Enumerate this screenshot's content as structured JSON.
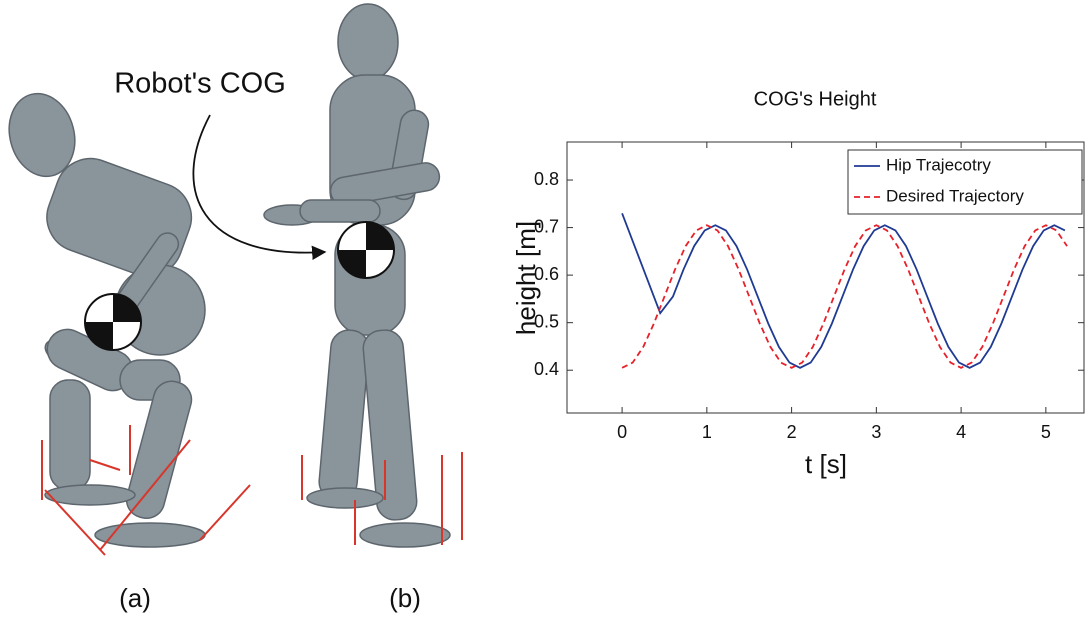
{
  "figure": {
    "callout": "Robot's COG",
    "panel_labels": [
      "(a)",
      "(b)"
    ]
  },
  "chart_data": {
    "type": "line",
    "title": "COG's Height",
    "x_label": "t [s]",
    "y_label": "height [m]",
    "xlim": [
      -0.65,
      5.45
    ],
    "ylim": [
      0.31,
      0.88
    ],
    "xticks": [
      0,
      1,
      2,
      3,
      4,
      5
    ],
    "yticks": [
      0.4,
      0.5,
      0.6,
      0.7,
      0.8
    ],
    "grid": false,
    "legend": "upper right",
    "series": [
      {
        "name": "Hip Trajecotry",
        "color": "#1f3a93",
        "style": "solid",
        "x": [
          0,
          0.45,
          0.6,
          0.725,
          0.85,
          0.975,
          1.1,
          1.225,
          1.35,
          1.475,
          1.6,
          1.725,
          1.85,
          1.975,
          2.1,
          2.225,
          2.35,
          2.475,
          2.6,
          2.725,
          2.85,
          2.975,
          3.1,
          3.225,
          3.35,
          3.475,
          3.6,
          3.725,
          3.85,
          3.975,
          4.1,
          4.225,
          4.35,
          4.475,
          4.6,
          4.725,
          4.85,
          4.975,
          5.1,
          5.225
        ],
        "values": [
          0.73,
          0.52,
          0.555,
          0.612,
          0.661,
          0.694,
          0.705,
          0.694,
          0.661,
          0.612,
          0.555,
          0.498,
          0.449,
          0.416,
          0.405,
          0.416,
          0.449,
          0.498,
          0.555,
          0.612,
          0.661,
          0.694,
          0.705,
          0.694,
          0.661,
          0.612,
          0.555,
          0.498,
          0.449,
          0.416,
          0.405,
          0.416,
          0.449,
          0.498,
          0.555,
          0.612,
          0.661,
          0.694,
          0.705,
          0.694
        ]
      },
      {
        "name": "Desired Trajectory",
        "color": "#e8202a",
        "style": "dashed",
        "x": [
          0,
          0.125,
          0.25,
          0.375,
          0.5,
          0.625,
          0.75,
          0.875,
          1,
          1.125,
          1.25,
          1.375,
          1.5,
          1.625,
          1.75,
          1.875,
          2,
          2.125,
          2.25,
          2.375,
          2.5,
          2.625,
          2.75,
          2.875,
          3,
          3.125,
          3.25,
          3.375,
          3.5,
          3.625,
          3.75,
          3.875,
          4,
          4.125,
          4.25,
          4.375,
          4.5,
          4.625,
          4.75,
          4.875,
          5,
          5.125,
          5.25
        ],
        "values": [
          0.405,
          0.416,
          0.449,
          0.498,
          0.555,
          0.612,
          0.661,
          0.694,
          0.705,
          0.694,
          0.661,
          0.612,
          0.555,
          0.498,
          0.449,
          0.416,
          0.405,
          0.416,
          0.449,
          0.498,
          0.555,
          0.612,
          0.661,
          0.694,
          0.705,
          0.694,
          0.661,
          0.612,
          0.555,
          0.498,
          0.449,
          0.416,
          0.405,
          0.416,
          0.449,
          0.498,
          0.555,
          0.612,
          0.661,
          0.694,
          0.705,
          0.694,
          0.661
        ]
      }
    ]
  }
}
